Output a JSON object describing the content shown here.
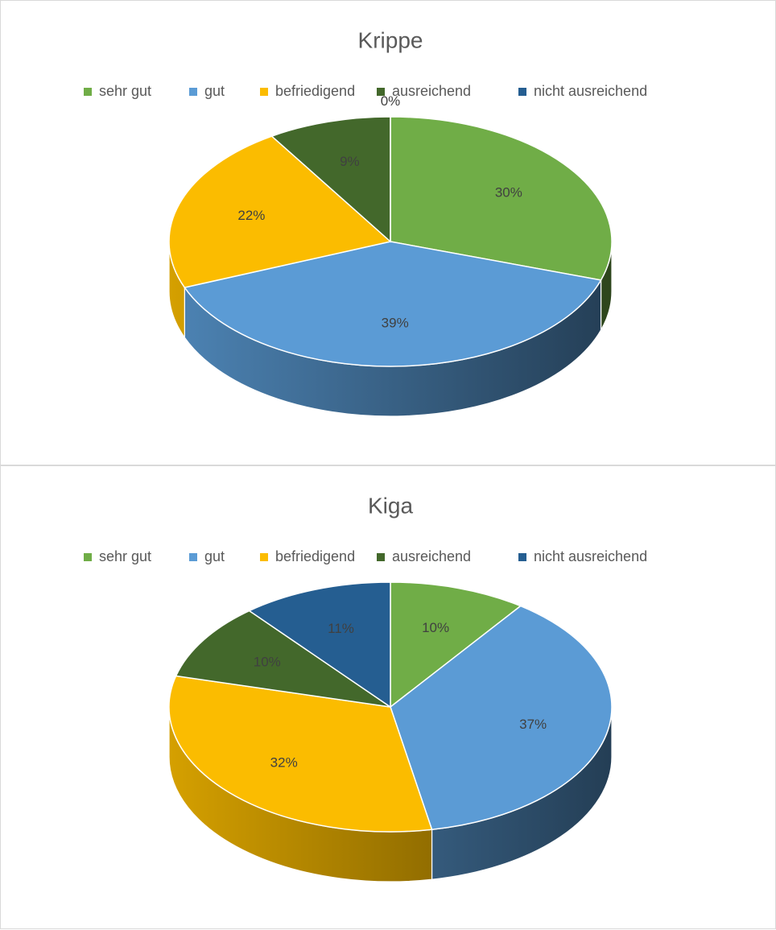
{
  "chart_data": [
    {
      "type": "pie",
      "title": "Krippe",
      "categories": [
        "sehr gut",
        "gut",
        "befriedigend",
        "ausreichend",
        "nicht ausreichend"
      ],
      "values": [
        30,
        39,
        22,
        9,
        0
      ],
      "value_labels": [
        "30%",
        "39%",
        "22%",
        "9%",
        "0%"
      ],
      "colors": [
        "#70ad47",
        "#5b9bd5",
        "#fbbc00",
        "#43682b",
        "#255e91"
      ],
      "legend": "top"
    },
    {
      "type": "pie",
      "title": "Kiga",
      "categories": [
        "sehr gut",
        "gut",
        "befriedigend",
        "ausreichend",
        "nicht ausreichend"
      ],
      "values": [
        10,
        37,
        32,
        10,
        11
      ],
      "value_labels": [
        "10%",
        "37%",
        "32%",
        "10%",
        "11%"
      ],
      "colors": [
        "#70ad47",
        "#5b9bd5",
        "#fbbc00",
        "#43682b",
        "#255e91"
      ],
      "legend": "top"
    }
  ]
}
